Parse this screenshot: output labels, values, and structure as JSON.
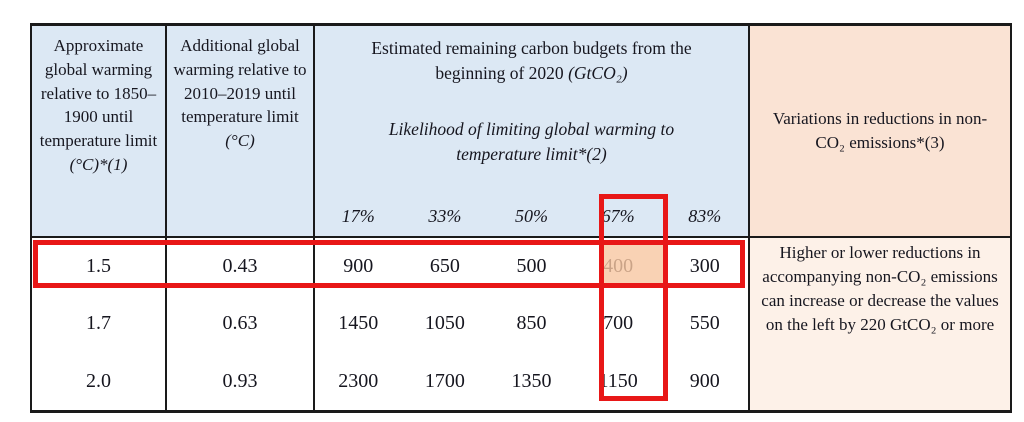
{
  "colors": {
    "header_blue": "#dce8f4",
    "header_peach": "#fae3d4",
    "body_peach": "#fdf1e8",
    "cell_highlight_peach": "#f8c7a1",
    "annotation_red": "#e81717",
    "text": "#16161f"
  },
  "table": {
    "header": {
      "col1_main": "Approximate global warming relative to 1850–1900 until temperature limit",
      "col1_italic": "(°C)*(1)",
      "col2_main": "Additional global warming relative to 2010–2019 until temperature limit",
      "col2_italic": "(°C)",
      "budget_title_main": "Estimated remaining carbon budgets from the beginning of 2020",
      "budget_title_italic": "(GtCO₂)",
      "likelihood": "Likelihood of limiting global warming to temperature limit*(2)",
      "percents": [
        "17%",
        "33%",
        "50%",
        "67%",
        "83%"
      ],
      "variations": "Variations in reductions in non-CO₂ emissions*(3)"
    },
    "rows": [
      {
        "warming": "1.5",
        "additional": "0.43",
        "budgets": [
          "900",
          "650",
          "500",
          "400",
          "300"
        ]
      },
      {
        "warming": "1.7",
        "additional": "0.63",
        "budgets": [
          "1450",
          "1050",
          "850",
          "700",
          "550"
        ]
      },
      {
        "warming": "2.0",
        "additional": "0.93",
        "budgets": [
          "2300",
          "1700",
          "1350",
          "1150",
          "900"
        ]
      }
    ],
    "variations_note": "Higher or lower reductions in accompanying non-CO₂ emissions can increase or decrease the values on the left by 220 GtCO₂ or more"
  },
  "annotations": {
    "highlighted_row_warming": "1.5",
    "highlighted_column_percent": "67%",
    "highlighted_cell_value": "400"
  }
}
